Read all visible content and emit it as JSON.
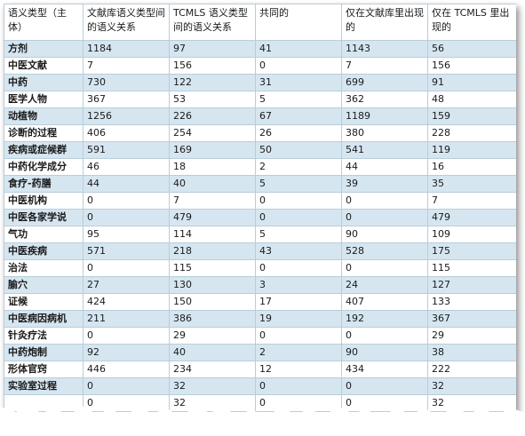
{
  "table": {
    "headers": [
      "语义类型（主体）",
      "文献库语义类型间的语义关系",
      "TCMLS 语义类型间的语义关系",
      "共同的",
      "仅在文献库里出现的",
      "仅在 TCMLS 里出现的"
    ],
    "rows": [
      [
        "方剂",
        "1184",
        "97",
        "41",
        "1143",
        "56"
      ],
      [
        "中医文献",
        "7",
        "156",
        "0",
        "7",
        "156"
      ],
      [
        "中药",
        "730",
        "122",
        "31",
        "699",
        "91"
      ],
      [
        "医学人物",
        "367",
        "53",
        "5",
        "362",
        "48"
      ],
      [
        "动植物",
        "1256",
        "226",
        "67",
        "1189",
        "159"
      ],
      [
        "诊断的过程",
        "406",
        "254",
        "26",
        "380",
        "228"
      ],
      [
        "疾病或症候群",
        "591",
        "169",
        "50",
        "541",
        "119"
      ],
      [
        "中药化学成分",
        "46",
        "18",
        "2",
        "44",
        "16"
      ],
      [
        "食疗-药膳",
        "44",
        "40",
        "5",
        "39",
        "35"
      ],
      [
        "中医机构",
        "0",
        "7",
        "0",
        "0",
        "7"
      ],
      [
        "中医各家学说",
        "0",
        "479",
        "0",
        "0",
        "479"
      ],
      [
        "气功",
        "95",
        "114",
        "5",
        "90",
        "109"
      ],
      [
        "中医疾病",
        "571",
        "218",
        "43",
        "528",
        "175"
      ],
      [
        "治法",
        "0",
        "115",
        "0",
        "0",
        "115"
      ],
      [
        "腧穴",
        "27",
        "130",
        "3",
        "24",
        "127"
      ],
      [
        "证候",
        "424",
        "150",
        "17",
        "407",
        "133"
      ],
      [
        "中医病因病机",
        "211",
        "386",
        "19",
        "192",
        "367"
      ],
      [
        "针灸疗法",
        "0",
        "29",
        "0",
        "0",
        "29"
      ],
      [
        "中药炮制",
        "92",
        "40",
        "2",
        "90",
        "38"
      ],
      [
        "形体官窍",
        "446",
        "234",
        "12",
        "434",
        "222"
      ],
      [
        "实验室过程",
        "0",
        "32",
        "0",
        "0",
        "32"
      ],
      [
        "",
        "0",
        "32",
        "0",
        "0",
        "32"
      ]
    ]
  },
  "colors": {
    "border": "#b9cdd9",
    "row_shade": "#d6e6f1",
    "text": "#1a1a1a"
  }
}
